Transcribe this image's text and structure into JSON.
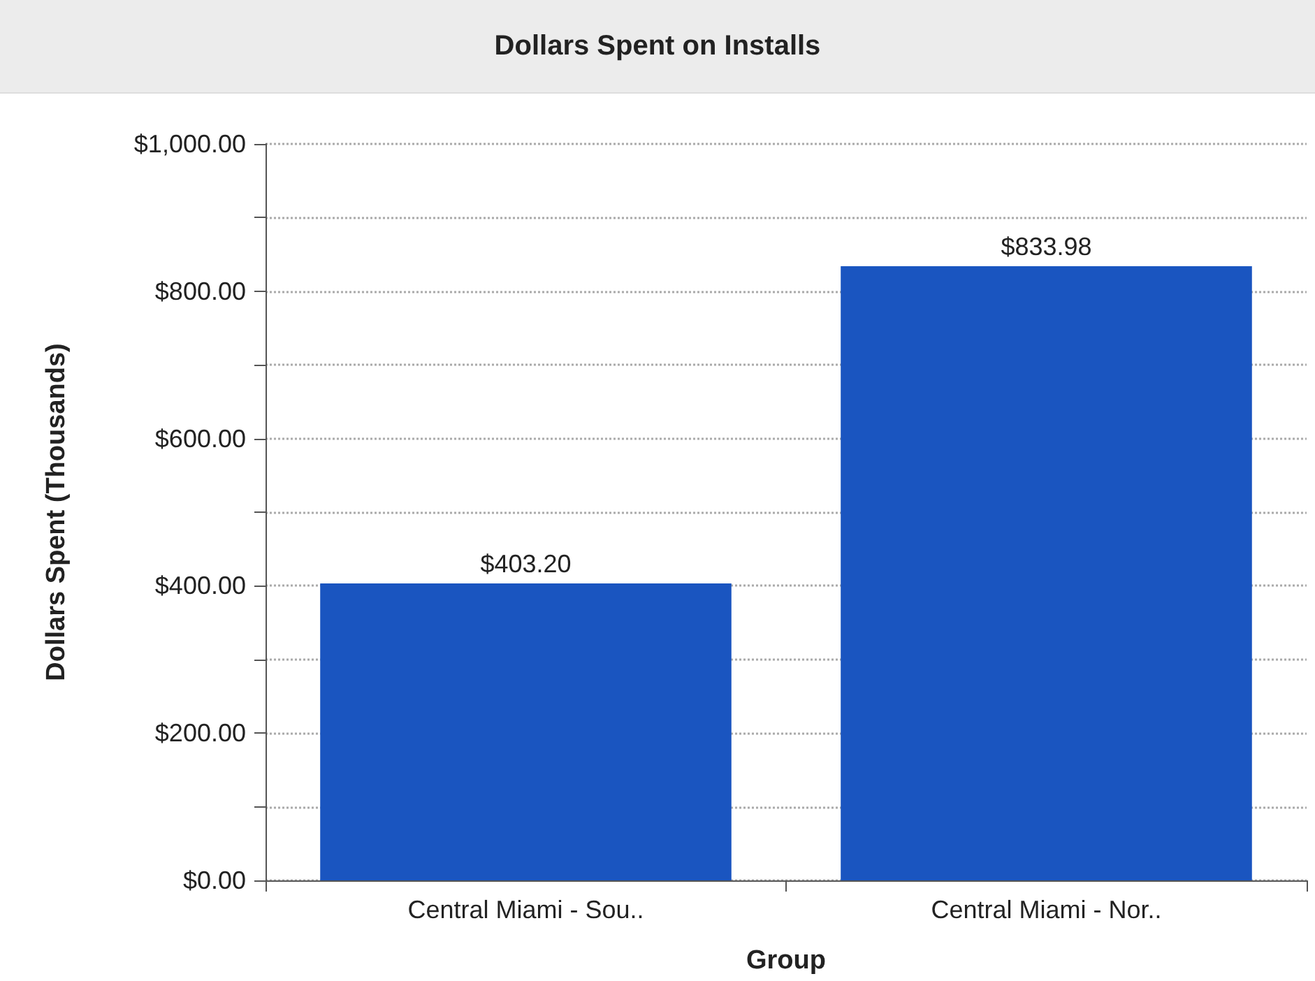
{
  "chart_data": {
    "type": "bar",
    "title": "Dollars Spent on Installs",
    "xlabel": "Group",
    "ylabel": "Dollars Spent (Thousands)",
    "categories": [
      "Central Miami - Sou..",
      "Central Miami - Nor.."
    ],
    "values": [
      403.2,
      833.98
    ],
    "value_labels": [
      "$403.20",
      "$833.98"
    ],
    "color": "#1a55c0",
    "ylim": [
      0,
      1000
    ],
    "yticks": [
      {
        "value": 0,
        "label": "$0.00"
      },
      {
        "value": 100,
        "label": null
      },
      {
        "value": 200,
        "label": "$200.00"
      },
      {
        "value": 300,
        "label": null
      },
      {
        "value": 400,
        "label": "$400.00"
      },
      {
        "value": 500,
        "label": null
      },
      {
        "value": 600,
        "label": "$600.00"
      },
      {
        "value": 700,
        "label": null
      },
      {
        "value": 800,
        "label": "$800.00"
      },
      {
        "value": 900,
        "label": null
      },
      {
        "value": 1000,
        "label": "$1,000.00"
      }
    ],
    "grid": "y"
  }
}
